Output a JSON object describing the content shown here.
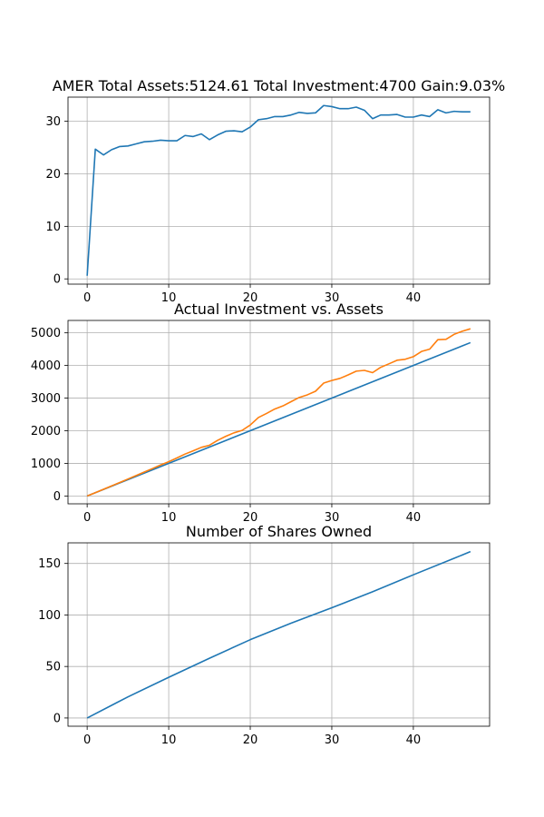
{
  "chart_data": [
    {
      "type": "line",
      "title": "AMER Total Assets:5124.61  Total Investment:4700  Gain:9.03%",
      "xlim": [
        -2.35,
        49.35
      ],
      "ylim": [
        -1.0,
        34.6
      ],
      "xticks": [
        0,
        10,
        20,
        30,
        40
      ],
      "yticks": [
        0,
        10,
        20,
        30
      ],
      "grid": true,
      "series": [
        {
          "color": "#1f77b4",
          "x": [
            0,
            1,
            2,
            3,
            4,
            5,
            6,
            7,
            8,
            9,
            10,
            11,
            12,
            13,
            14,
            15,
            16,
            17,
            18,
            19,
            20,
            21,
            22,
            23,
            24,
            25,
            26,
            27,
            28,
            29,
            30,
            31,
            32,
            33,
            34,
            35,
            36,
            37,
            38,
            39,
            40,
            41,
            42,
            43,
            44,
            45,
            46,
            47
          ],
          "y": [
            0.6,
            24.7,
            23.6,
            24.6,
            25.2,
            25.3,
            25.7,
            26.1,
            26.2,
            26.4,
            26.3,
            26.3,
            27.3,
            27.1,
            27.6,
            26.5,
            27.4,
            28.1,
            28.2,
            28.0,
            28.9,
            30.3,
            30.5,
            30.9,
            30.9,
            31.2,
            31.7,
            31.5,
            31.6,
            33.0,
            32.8,
            32.4,
            32.4,
            32.7,
            32.1,
            30.5,
            31.2,
            31.2,
            31.3,
            30.8,
            30.8,
            31.2,
            30.9,
            32.2,
            31.6,
            31.9,
            31.8,
            31.8
          ]
        }
      ]
    },
    {
      "type": "line",
      "title": "Actual Investment vs. Assets",
      "xlim": [
        -2.35,
        49.35
      ],
      "ylim": [
        -240,
        5380
      ],
      "xticks": [
        0,
        10,
        20,
        30,
        40
      ],
      "yticks": [
        0,
        1000,
        2000,
        3000,
        4000,
        5000
      ],
      "grid": true,
      "series": [
        {
          "color": "#1f77b4",
          "x": [
            0,
            47
          ],
          "y": [
            0,
            4700
          ]
        },
        {
          "color": "#ff7f0e",
          "x": [
            0,
            1,
            2,
            3,
            4,
            5,
            6,
            7,
            8,
            9,
            10,
            11,
            12,
            13,
            14,
            15,
            16,
            17,
            18,
            19,
            20,
            21,
            22,
            23,
            24,
            25,
            26,
            27,
            28,
            29,
            30,
            31,
            32,
            33,
            34,
            35,
            36,
            37,
            38,
            39,
            40,
            41,
            42,
            43,
            44,
            45,
            46,
            47
          ],
          "y": [
            0,
            102,
            206,
            310,
            415,
            520,
            625,
            735,
            840,
            950,
            1050,
            1165,
            1285,
            1385,
            1490,
            1555,
            1705,
            1830,
            1935,
            2010,
            2175,
            2405,
            2530,
            2665,
            2760,
            2890,
            3020,
            3100,
            3210,
            3460,
            3540,
            3605,
            3710,
            3825,
            3850,
            3780,
            3945,
            4050,
            4160,
            4190,
            4270,
            4430,
            4500,
            4790,
            4800,
            4955,
            5050,
            5124.61
          ]
        }
      ]
    },
    {
      "type": "line",
      "title": "Number of Shares Owned",
      "xlim": [
        -2.35,
        49.35
      ],
      "ylim": [
        -8,
        170
      ],
      "xticks": [
        0,
        10,
        20,
        30,
        40
      ],
      "yticks": [
        0,
        50,
        100,
        150
      ],
      "grid": true,
      "series": [
        {
          "color": "#1f77b4",
          "x": [
            0,
            5,
            10,
            15,
            20,
            25,
            30,
            35,
            40,
            45,
            47
          ],
          "y": [
            0,
            20.5,
            39.5,
            58,
            76,
            92,
            107,
            122.5,
            139,
            155,
            161.5
          ]
        }
      ]
    }
  ]
}
